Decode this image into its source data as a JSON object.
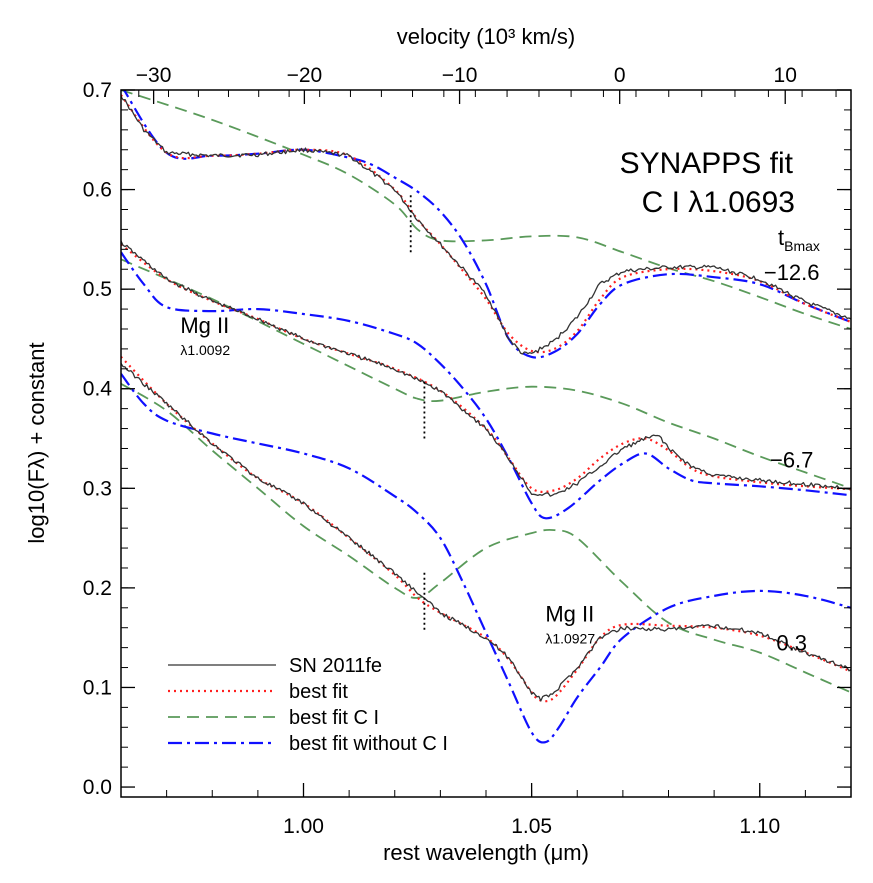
{
  "chart_data": {
    "type": "line",
    "title": "SYNAPPS fit",
    "subtitle": "C I λ1.0693",
    "xlabel": "rest wavelength (μm)",
    "ylabel": "log10(Fλ) + constant",
    "x2label": "velocity (10³ km/s)",
    "xlim": [
      0.96,
      1.12
    ],
    "ylim": [
      -0.01,
      0.7
    ],
    "x_ticks": [
      1.0,
      1.05,
      1.1
    ],
    "x_tick_labels": [
      "1.00",
      "1.05",
      "1.10"
    ],
    "y_ticks": [
      0.0,
      0.1,
      0.2,
      0.3,
      0.4,
      0.5,
      0.6,
      0.7
    ],
    "y_tick_labels": [
      "0.0",
      "0.1",
      "0.2",
      "0.3",
      "0.4",
      "0.5",
      "0.6",
      "0.7"
    ],
    "velocity_ticks": [
      -30,
      -20,
      -10,
      0,
      10
    ],
    "velocity_tick_labels": [
      "−30",
      "−20",
      "−10",
      "0",
      "10"
    ],
    "velocity_ref_um": 1.0693,
    "epoch_header": {
      "main": "t",
      "sub": "Bmax"
    },
    "legend": {
      "placement": "bottom-left",
      "entries": [
        {
          "label": "SN 2011fe",
          "color": "#333333",
          "style": "solid"
        },
        {
          "label": "best fit",
          "color": "#ff2020",
          "style": "dotted"
        },
        {
          "label": "best fit C I",
          "color": "#5a9a5a",
          "style": "dashed"
        },
        {
          "label": "best fit without C I",
          "color": "#1010ff",
          "style": "dashdot"
        }
      ]
    },
    "annotations": [
      {
        "main": "Mg II",
        "sub": "λ1.0092",
        "x": 0.973,
        "y": 0.456
      },
      {
        "main": "Mg II",
        "sub": "λ1.0927",
        "x": 1.053,
        "y": 0.166
      }
    ],
    "markers": [
      {
        "x": 1.0235,
        "y_bottom": 0.537,
        "y_top": 0.597
      },
      {
        "x": 1.0265,
        "y_bottom": 0.35,
        "y_top": 0.41
      },
      {
        "x": 1.0265,
        "y_bottom": 0.158,
        "y_top": 0.218
      }
    ],
    "spectra": [
      {
        "epoch": "−12.6",
        "label_pos": {
          "x": 1.107,
          "y": 0.509
        },
        "observed": {
          "x": [
            0.96,
            0.965,
            0.97,
            0.98,
            0.99,
            1.0,
            1.01,
            1.02,
            1.025,
            1.03,
            1.035,
            1.04,
            1.045,
            1.048,
            1.05,
            1.055,
            1.06,
            1.065,
            1.07,
            1.08,
            1.09,
            1.1,
            1.11,
            1.12
          ],
          "y": [
            0.695,
            0.66,
            0.637,
            0.634,
            0.635,
            0.64,
            0.634,
            0.6,
            0.57,
            0.545,
            0.52,
            0.495,
            0.45,
            0.435,
            0.435,
            0.448,
            0.472,
            0.505,
            0.518,
            0.522,
            0.522,
            0.51,
            0.487,
            0.47
          ]
        },
        "best_fit": {
          "x": [
            0.96,
            0.97,
            0.98,
            0.99,
            1.0,
            1.01,
            1.02,
            1.025,
            1.03,
            1.035,
            1.04,
            1.045,
            1.05,
            1.055,
            1.06,
            1.065,
            1.07,
            1.08,
            1.09,
            1.1,
            1.11,
            1.12
          ],
          "y": [
            0.695,
            0.637,
            0.634,
            0.636,
            0.64,
            0.634,
            0.6,
            0.57,
            0.545,
            0.518,
            0.49,
            0.455,
            0.438,
            0.44,
            0.458,
            0.49,
            0.512,
            0.52,
            0.518,
            0.508,
            0.485,
            0.467
          ]
        },
        "best_fit_CI": {
          "x": [
            0.96,
            0.98,
            1.0,
            1.01,
            1.02,
            1.025,
            1.03,
            1.04,
            1.05,
            1.06,
            1.07,
            1.08,
            1.09,
            1.1,
            1.11,
            1.12
          ],
          "y": [
            0.7,
            0.67,
            0.635,
            0.615,
            0.585,
            0.56,
            0.549,
            0.549,
            0.553,
            0.552,
            0.537,
            0.521,
            0.508,
            0.492,
            0.475,
            0.46
          ],
          "x_start": 0.96
        },
        "best_fit_no_CI": {
          "x": [
            0.96,
            0.97,
            0.98,
            0.99,
            1.0,
            1.01,
            1.015,
            1.02,
            1.025,
            1.03,
            1.035,
            1.04,
            1.045,
            1.05,
            1.055,
            1.06,
            1.065,
            1.07,
            1.08,
            1.09,
            1.1,
            1.11,
            1.12
          ],
          "y": [
            0.705,
            0.637,
            0.634,
            0.636,
            0.64,
            0.632,
            0.625,
            0.612,
            0.598,
            0.578,
            0.548,
            0.505,
            0.45,
            0.432,
            0.437,
            0.455,
            0.485,
            0.505,
            0.515,
            0.512,
            0.505,
            0.485,
            0.467
          ]
        }
      },
      {
        "epoch": "−6.7",
        "label_pos": {
          "x": 1.107,
          "y": 0.321
        },
        "observed": {
          "x": [
            0.96,
            0.97,
            0.98,
            0.99,
            1.0,
            1.01,
            1.02,
            1.03,
            1.04,
            1.045,
            1.05,
            1.055,
            1.06,
            1.065,
            1.07,
            1.075,
            1.078,
            1.08,
            1.085,
            1.09,
            1.1,
            1.11,
            1.12
          ],
          "y": [
            0.547,
            0.51,
            0.488,
            0.47,
            0.45,
            0.435,
            0.42,
            0.398,
            0.36,
            0.33,
            0.295,
            0.293,
            0.305,
            0.322,
            0.34,
            0.35,
            0.353,
            0.34,
            0.322,
            0.313,
            0.308,
            0.304,
            0.3
          ],
          "x_start": 0.96
        },
        "best_fit": {
          "x": [
            0.96,
            0.97,
            0.98,
            0.99,
            1.0,
            1.01,
            1.02,
            1.03,
            1.04,
            1.045,
            1.05,
            1.055,
            1.06,
            1.065,
            1.07,
            1.075,
            1.08,
            1.085,
            1.09,
            1.1,
            1.11,
            1.12
          ],
          "y": [
            0.545,
            0.51,
            0.488,
            0.47,
            0.45,
            0.435,
            0.42,
            0.398,
            0.36,
            0.33,
            0.3,
            0.298,
            0.31,
            0.33,
            0.345,
            0.35,
            0.338,
            0.32,
            0.312,
            0.306,
            0.302,
            0.299
          ]
        },
        "best_fit_CI": {
          "x": [
            0.96,
            0.98,
            1.0,
            1.02,
            1.025,
            1.03,
            1.04,
            1.05,
            1.06,
            1.07,
            1.08,
            1.09,
            1.1,
            1.11,
            1.12
          ],
          "y": [
            0.53,
            0.49,
            0.445,
            0.4,
            0.39,
            0.388,
            0.397,
            0.402,
            0.398,
            0.385,
            0.366,
            0.35,
            0.332,
            0.316,
            0.3
          ]
        },
        "best_fit_no_CI": {
          "x": [
            0.96,
            0.965,
            0.97,
            0.98,
            0.99,
            1.0,
            1.01,
            1.02,
            1.025,
            1.03,
            1.035,
            1.04,
            1.045,
            1.05,
            1.053,
            1.058,
            1.065,
            1.07,
            1.075,
            1.08,
            1.085,
            1.09,
            1.1,
            1.11,
            1.12
          ],
          "y": [
            0.537,
            0.505,
            0.482,
            0.478,
            0.48,
            0.475,
            0.468,
            0.455,
            0.445,
            0.425,
            0.4,
            0.37,
            0.33,
            0.285,
            0.27,
            0.28,
            0.308,
            0.325,
            0.335,
            0.32,
            0.308,
            0.305,
            0.302,
            0.298,
            0.293
          ]
        }
      },
      {
        "epoch": "0.3",
        "label_pos": {
          "x": 1.107,
          "y": 0.137
        },
        "observed": {
          "x": [
            0.96,
            0.97,
            0.98,
            0.99,
            1.0,
            1.01,
            1.02,
            1.025,
            1.03,
            1.04,
            1.045,
            1.05,
            1.052,
            1.055,
            1.06,
            1.065,
            1.07,
            1.08,
            1.09,
            1.1,
            1.11,
            1.12
          ],
          "y": [
            0.425,
            0.385,
            0.345,
            0.31,
            0.285,
            0.25,
            0.215,
            0.195,
            0.175,
            0.15,
            0.13,
            0.095,
            0.088,
            0.095,
            0.12,
            0.15,
            0.16,
            0.158,
            0.162,
            0.155,
            0.135,
            0.118
          ],
          "x_start": 0.96
        },
        "best_fit": {
          "x": [
            0.96,
            0.97,
            0.98,
            0.99,
            1.0,
            1.01,
            1.02,
            1.025,
            1.03,
            1.04,
            1.045,
            1.05,
            1.052,
            1.055,
            1.06,
            1.065,
            1.07,
            1.08,
            1.09,
            1.1,
            1.11,
            1.12
          ],
          "y": [
            0.432,
            0.385,
            0.345,
            0.31,
            0.285,
            0.25,
            0.213,
            0.19,
            0.175,
            0.15,
            0.128,
            0.095,
            0.087,
            0.09,
            0.118,
            0.15,
            0.163,
            0.162,
            0.16,
            0.152,
            0.135,
            0.116
          ],
          "x_start": 0.96
        },
        "best_fit_CI": {
          "x": [
            0.96,
            0.97,
            0.98,
            0.99,
            1.0,
            1.01,
            1.02,
            1.025,
            1.03,
            1.04,
            1.05,
            1.055,
            1.06,
            1.07,
            1.08,
            1.09,
            1.1,
            1.11,
            1.12
          ],
          "y": [
            0.405,
            0.378,
            0.338,
            0.3,
            0.262,
            0.232,
            0.2,
            0.19,
            0.205,
            0.24,
            0.255,
            0.258,
            0.25,
            0.205,
            0.165,
            0.148,
            0.135,
            0.115,
            0.095
          ],
          "x_start": 0.96
        },
        "best_fit_no_CI": {
          "x": [
            0.96,
            0.965,
            0.97,
            0.98,
            0.99,
            1.0,
            1.01,
            1.02,
            1.025,
            1.03,
            1.035,
            1.04,
            1.045,
            1.05,
            1.053,
            1.056,
            1.06,
            1.065,
            1.07,
            1.08,
            1.09,
            1.1,
            1.11,
            1.12
          ],
          "y": [
            0.415,
            0.385,
            0.368,
            0.355,
            0.345,
            0.335,
            0.32,
            0.292,
            0.275,
            0.25,
            0.205,
            0.155,
            0.105,
            0.055,
            0.045,
            0.06,
            0.09,
            0.12,
            0.15,
            0.18,
            0.192,
            0.197,
            0.192,
            0.18
          ]
        }
      }
    ]
  }
}
